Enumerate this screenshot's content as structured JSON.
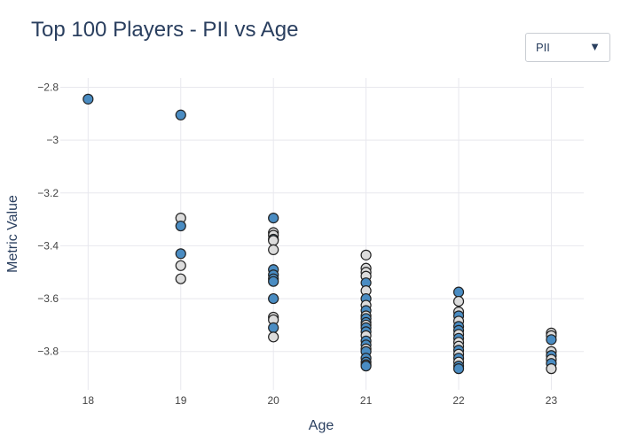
{
  "chart_data": {
    "type": "scatter",
    "title": "Top 100 Players - PII vs Age",
    "xlabel": "Age",
    "ylabel": "Metric Value",
    "xlim": [
      17.7,
      23.35
    ],
    "ylim": [
      -3.945,
      -2.765
    ],
    "x_ticks": [
      18,
      19,
      20,
      21,
      22,
      23
    ],
    "y_ticks": [
      -2.8,
      -3,
      -3.2,
      -3.4,
      -3.6,
      -3.8
    ],
    "y_tick_labels": [
      "−2.8",
      "−3",
      "−3.2",
      "−3.4",
      "−3.6",
      "−3.8"
    ],
    "grid": true,
    "colors": {
      "blue": "#4a8cc2",
      "gray": "#dcdcdc",
      "outline": "#222222",
      "grid": "#e8e8ee",
      "text": "#2a3f5f"
    },
    "points": [
      {
        "x": 18,
        "y": -2.845,
        "c": "blue"
      },
      {
        "x": 19,
        "y": -2.905,
        "c": "blue"
      },
      {
        "x": 19,
        "y": -3.295,
        "c": "gray"
      },
      {
        "x": 19,
        "y": -3.325,
        "c": "blue"
      },
      {
        "x": 19,
        "y": -3.43,
        "c": "blue"
      },
      {
        "x": 19,
        "y": -3.475,
        "c": "gray"
      },
      {
        "x": 19,
        "y": -3.525,
        "c": "gray"
      },
      {
        "x": 20,
        "y": -3.295,
        "c": "blue"
      },
      {
        "x": 20,
        "y": -3.35,
        "c": "gray"
      },
      {
        "x": 20,
        "y": -3.36,
        "c": "gray"
      },
      {
        "x": 20,
        "y": -3.375,
        "c": "blue"
      },
      {
        "x": 20,
        "y": -3.38,
        "c": "gray"
      },
      {
        "x": 20,
        "y": -3.415,
        "c": "gray"
      },
      {
        "x": 20,
        "y": -3.49,
        "c": "blue"
      },
      {
        "x": 20,
        "y": -3.51,
        "c": "blue"
      },
      {
        "x": 20,
        "y": -3.525,
        "c": "blue"
      },
      {
        "x": 20,
        "y": -3.535,
        "c": "blue"
      },
      {
        "x": 20,
        "y": -3.6,
        "c": "blue"
      },
      {
        "x": 20,
        "y": -3.67,
        "c": "gray"
      },
      {
        "x": 20,
        "y": -3.68,
        "c": "gray"
      },
      {
        "x": 20,
        "y": -3.71,
        "c": "blue"
      },
      {
        "x": 20,
        "y": -3.745,
        "c": "gray"
      },
      {
        "x": 21,
        "y": -3.435,
        "c": "gray"
      },
      {
        "x": 21,
        "y": -3.485,
        "c": "gray"
      },
      {
        "x": 21,
        "y": -3.5,
        "c": "gray"
      },
      {
        "x": 21,
        "y": -3.515,
        "c": "gray"
      },
      {
        "x": 21,
        "y": -3.54,
        "c": "blue"
      },
      {
        "x": 21,
        "y": -3.57,
        "c": "gray"
      },
      {
        "x": 21,
        "y": -3.6,
        "c": "blue"
      },
      {
        "x": 21,
        "y": -3.625,
        "c": "gray"
      },
      {
        "x": 21,
        "y": -3.645,
        "c": "blue"
      },
      {
        "x": 21,
        "y": -3.665,
        "c": "gray"
      },
      {
        "x": 21,
        "y": -3.675,
        "c": "blue"
      },
      {
        "x": 21,
        "y": -3.69,
        "c": "blue"
      },
      {
        "x": 21,
        "y": -3.7,
        "c": "gray"
      },
      {
        "x": 21,
        "y": -3.71,
        "c": "blue"
      },
      {
        "x": 21,
        "y": -3.725,
        "c": "blue"
      },
      {
        "x": 21,
        "y": -3.74,
        "c": "gray"
      },
      {
        "x": 21,
        "y": -3.76,
        "c": "blue"
      },
      {
        "x": 21,
        "y": -3.775,
        "c": "blue"
      },
      {
        "x": 21,
        "y": -3.79,
        "c": "gray"
      },
      {
        "x": 21,
        "y": -3.8,
        "c": "blue"
      },
      {
        "x": 21,
        "y": -3.825,
        "c": "blue"
      },
      {
        "x": 21,
        "y": -3.84,
        "c": "blue"
      },
      {
        "x": 21,
        "y": -3.85,
        "c": "gray"
      },
      {
        "x": 21,
        "y": -3.855,
        "c": "blue"
      },
      {
        "x": 22,
        "y": -3.575,
        "c": "blue"
      },
      {
        "x": 22,
        "y": -3.61,
        "c": "gray"
      },
      {
        "x": 22,
        "y": -3.65,
        "c": "gray"
      },
      {
        "x": 22,
        "y": -3.665,
        "c": "blue"
      },
      {
        "x": 22,
        "y": -3.685,
        "c": "gray"
      },
      {
        "x": 22,
        "y": -3.705,
        "c": "blue"
      },
      {
        "x": 22,
        "y": -3.72,
        "c": "blue"
      },
      {
        "x": 22,
        "y": -3.735,
        "c": "gray"
      },
      {
        "x": 22,
        "y": -3.75,
        "c": "blue"
      },
      {
        "x": 22,
        "y": -3.765,
        "c": "gray"
      },
      {
        "x": 22,
        "y": -3.78,
        "c": "gray"
      },
      {
        "x": 22,
        "y": -3.795,
        "c": "blue"
      },
      {
        "x": 22,
        "y": -3.81,
        "c": "gray"
      },
      {
        "x": 22,
        "y": -3.825,
        "c": "blue"
      },
      {
        "x": 22,
        "y": -3.84,
        "c": "gray"
      },
      {
        "x": 22,
        "y": -3.855,
        "c": "blue"
      },
      {
        "x": 22,
        "y": -3.865,
        "c": "blue"
      },
      {
        "x": 23,
        "y": -3.73,
        "c": "gray"
      },
      {
        "x": 23,
        "y": -3.74,
        "c": "gray"
      },
      {
        "x": 23,
        "y": -3.755,
        "c": "blue"
      },
      {
        "x": 23,
        "y": -3.8,
        "c": "gray"
      },
      {
        "x": 23,
        "y": -3.815,
        "c": "blue"
      },
      {
        "x": 23,
        "y": -3.83,
        "c": "gray"
      },
      {
        "x": 23,
        "y": -3.845,
        "c": "blue"
      },
      {
        "x": 23,
        "y": -3.865,
        "c": "gray"
      }
    ]
  },
  "dropdown": {
    "selected": "PII",
    "caret": "▼"
  }
}
